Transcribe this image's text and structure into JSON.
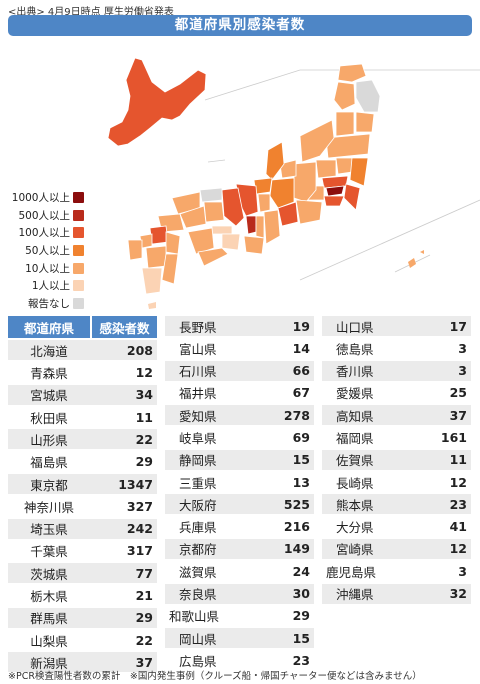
{
  "source": "<出典> 4月9日時点 厚生労働省発表",
  "title": "都道府県別感染者数",
  "legend": [
    {
      "label": "1000人以上",
      "color": "#8b0d0d"
    },
    {
      "label": "500人以上",
      "color": "#b92b1c"
    },
    {
      "label": "100人以上",
      "color": "#e5552e"
    },
    {
      "label": "50人以上",
      "color": "#f0822f"
    },
    {
      "label": "10人以上",
      "color": "#f7a86a"
    },
    {
      "label": "1人以上",
      "color": "#fbd3b4"
    },
    {
      "label": "報告なし",
      "color": "#d9d9d9"
    }
  ],
  "chart_data": {
    "type": "table",
    "columns": [
      "都道府県",
      "感染者数"
    ],
    "rows": [
      [
        "北海道",
        208
      ],
      [
        "青森県",
        12
      ],
      [
        "宮城県",
        34
      ],
      [
        "秋田県",
        11
      ],
      [
        "山形県",
        22
      ],
      [
        "福島県",
        29
      ],
      [
        "東京都",
        1347
      ],
      [
        "神奈川県",
        327
      ],
      [
        "埼玉県",
        242
      ],
      [
        "千葉県",
        317
      ],
      [
        "茨城県",
        77
      ],
      [
        "栃木県",
        21
      ],
      [
        "群馬県",
        29
      ],
      [
        "山梨県",
        22
      ],
      [
        "新潟県",
        37
      ],
      [
        "長野県",
        19
      ],
      [
        "富山県",
        14
      ],
      [
        "石川県",
        66
      ],
      [
        "福井県",
        67
      ],
      [
        "愛知県",
        278
      ],
      [
        "岐阜県",
        69
      ],
      [
        "静岡県",
        15
      ],
      [
        "三重県",
        13
      ],
      [
        "大阪府",
        525
      ],
      [
        "兵庫県",
        216
      ],
      [
        "京都府",
        149
      ],
      [
        "滋賀県",
        24
      ],
      [
        "奈良県",
        30
      ],
      [
        "和歌山県",
        29
      ],
      [
        "岡山県",
        15
      ],
      [
        "広島県",
        23
      ],
      [
        "山口県",
        17
      ],
      [
        "徳島県",
        3
      ],
      [
        "香川県",
        3
      ],
      [
        "愛媛県",
        25
      ],
      [
        "高知県",
        37
      ],
      [
        "福岡県",
        161
      ],
      [
        "佐賀県",
        11
      ],
      [
        "長崎県",
        12
      ],
      [
        "熊本県",
        23
      ],
      [
        "大分県",
        41
      ],
      [
        "宮崎県",
        12
      ],
      [
        "鹿児島県",
        3
      ],
      [
        "沖縄県",
        32
      ]
    ]
  },
  "footnote": "※PCR検査陽性者数の累計　※国内発生事例（クルーズ船・帰国チャーター便などは含みません）"
}
